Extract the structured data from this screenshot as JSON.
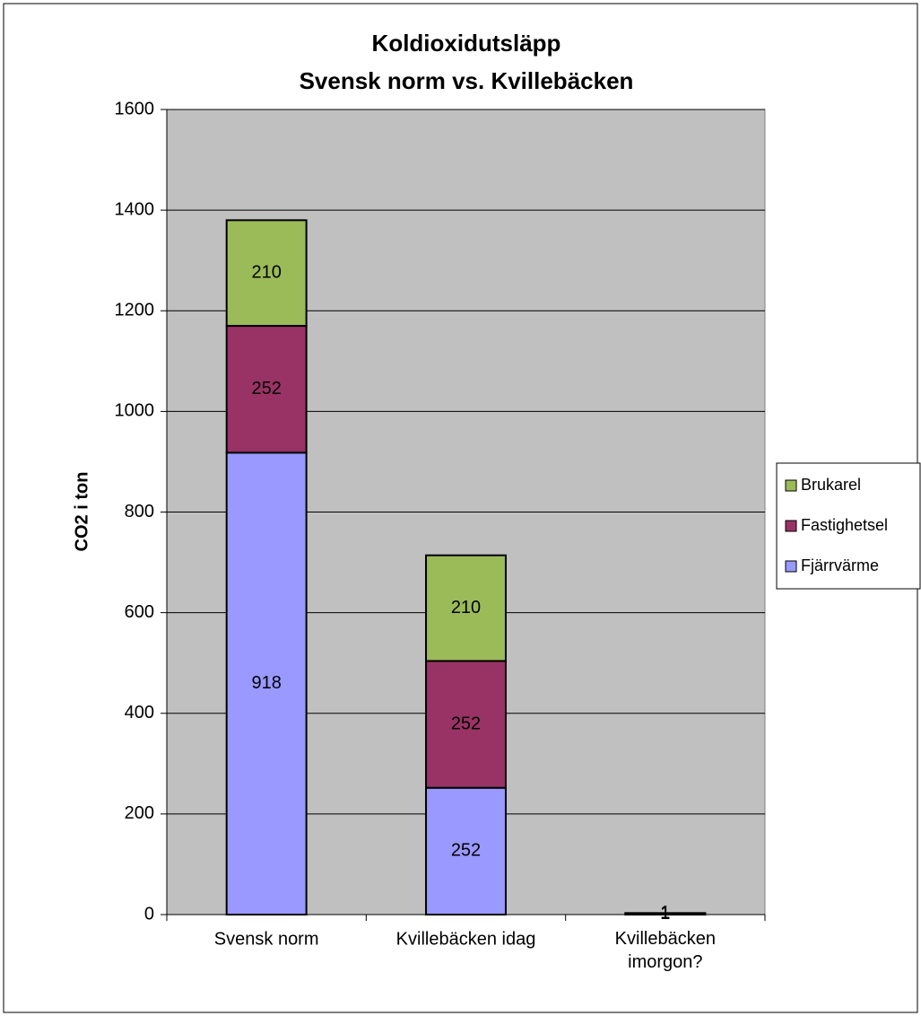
{
  "chart_data": {
    "type": "stacked_bar",
    "title": [
      "Koldioxidutsläpp",
      "Svensk norm vs. Kvillebäcken"
    ],
    "y_label": "CO2 i ton",
    "categories": [
      "Svensk norm",
      "Kvillebäcken idag",
      "Kvillebäcken imorgon?"
    ],
    "series": [
      {
        "name": "Fjärrvärme",
        "color": "#9999ff",
        "values": [
          918,
          252,
          1
        ]
      },
      {
        "name": "Fastighetsel",
        "color": "#993366",
        "values": [
          252,
          252,
          1
        ]
      },
      {
        "name": "Brukarel",
        "color": "#9bbb59",
        "values": [
          210,
          210,
          1
        ]
      }
    ],
    "ylim": [
      0,
      1600
    ],
    "yticks": [
      0,
      200,
      400,
      600,
      800,
      1000,
      1200,
      1400,
      1600
    ],
    "grid": true,
    "legend": "right",
    "plot_background": "#c0c0c0"
  }
}
